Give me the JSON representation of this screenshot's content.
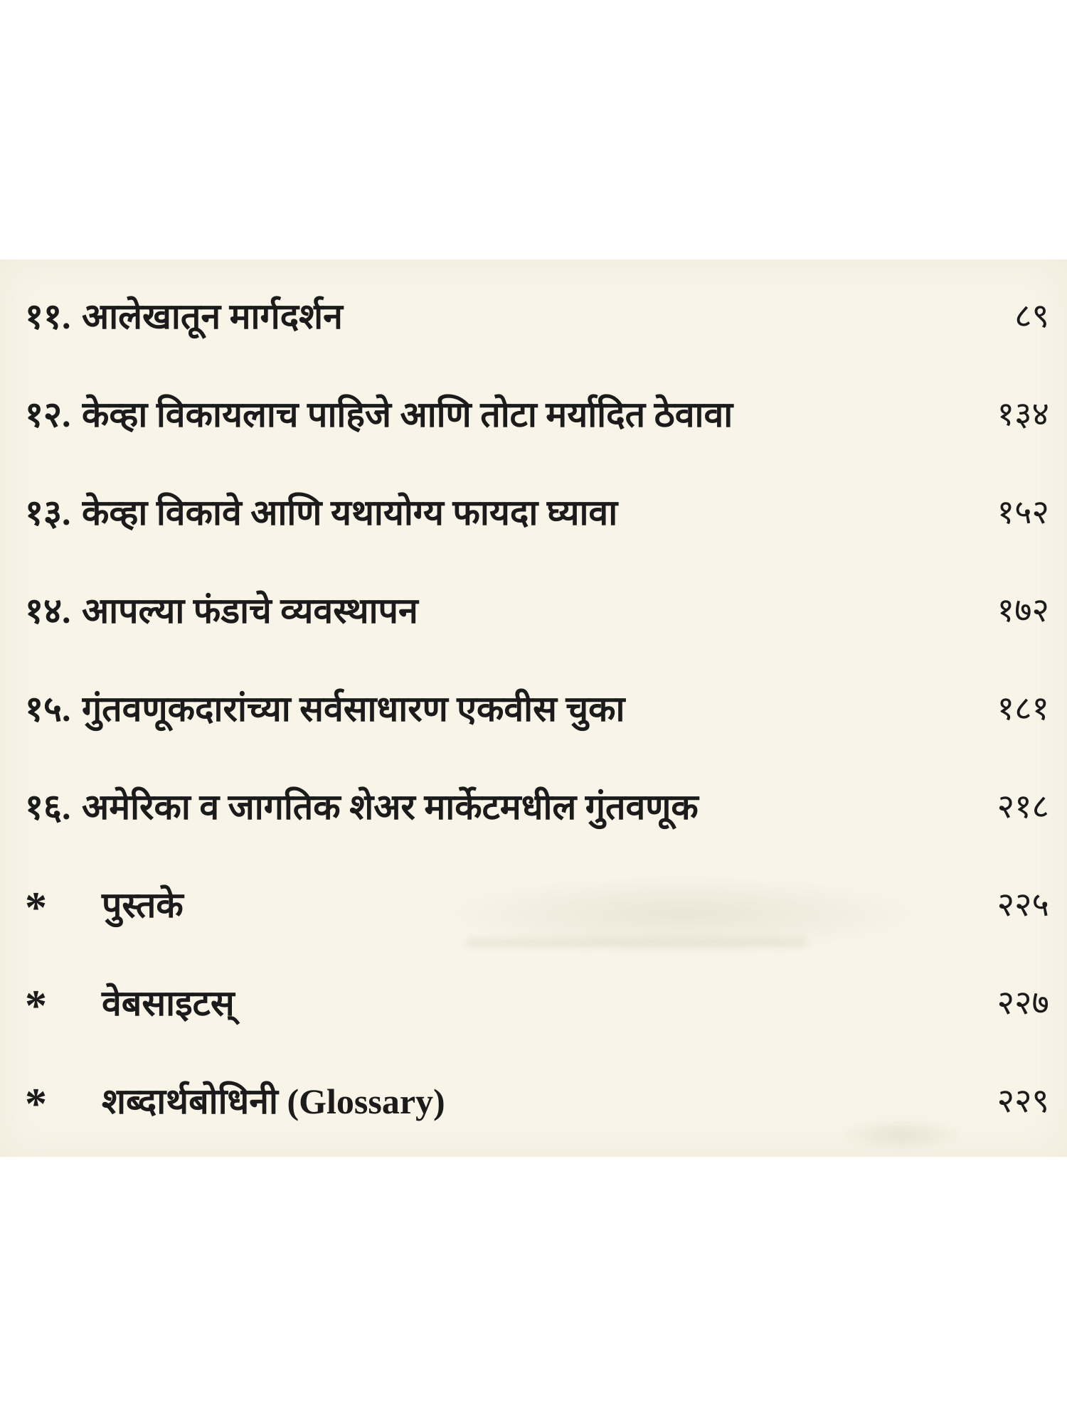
{
  "page": {
    "paper_color": "#f8f4e8",
    "ink_color": "#1b1b1b"
  },
  "toc": {
    "items": [
      {
        "marker": "११.",
        "title": "आलेखातून मार्गदर्शन",
        "page": "८९"
      },
      {
        "marker": "१२.",
        "title": "केव्हा विकायलाच पाहिजे आणि तोटा मर्यादित ठेवावा",
        "page": "१३४"
      },
      {
        "marker": "१३.",
        "title": "केव्हा विकावे आणि यथायोग्य फायदा घ्यावा",
        "page": "१५२"
      },
      {
        "marker": "१४.",
        "title": "आपल्या फंडाचे व्यवस्थापन",
        "page": "१७२"
      },
      {
        "marker": "१५.",
        "title": "गुंतवणूकदारांच्या सर्वसाधारण एकवीस चुका",
        "page": "१८१"
      },
      {
        "marker": "१६.",
        "title": "अमेरिका व जागतिक शेअर मार्केटमधील गुंतवणूक",
        "page": "२१८"
      },
      {
        "marker": "*",
        "title": "पुस्तके",
        "page": "२२५"
      },
      {
        "marker": "*",
        "title": "वेबसाइटस्",
        "page": "२२७"
      },
      {
        "marker": "*",
        "title": "शब्दार्थबोधिनी (Glossary)",
        "page": "२२९"
      }
    ]
  }
}
